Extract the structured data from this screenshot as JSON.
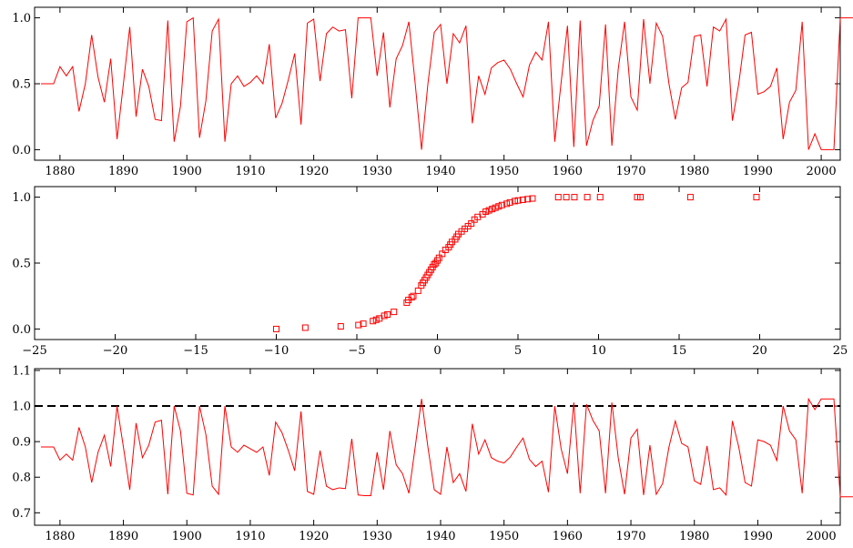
{
  "chart_data": [
    {
      "type": "line",
      "color": "#ff0000",
      "xlim": [
        1876,
        2003
      ],
      "ylim": [
        -0.08,
        1.08
      ],
      "x_ticks": [
        1880,
        1890,
        1900,
        1910,
        1920,
        1930,
        1940,
        1950,
        1960,
        1970,
        1980,
        1990,
        2000
      ],
      "y_ticks": [
        0.0,
        0.5,
        1.0
      ],
      "x_tick_labels": [
        "1880",
        "1890",
        "1900",
        "1910",
        "1920",
        "1930",
        "1940",
        "1950",
        "1960",
        "1970",
        "1980",
        "1990",
        "2000"
      ],
      "y_tick_labels": [
        "0.0",
        "0.5",
        "1.0"
      ],
      "x_start": 1877,
      "x_step": 1,
      "values": [
        0.5,
        0.5,
        0.5,
        0.63,
        0.56,
        0.63,
        0.29,
        0.5,
        0.87,
        0.55,
        0.36,
        0.69,
        0.08,
        0.5,
        0.93,
        0.25,
        0.61,
        0.48,
        0.23,
        0.22,
        0.98,
        0.06,
        0.33,
        0.97,
        1.0,
        0.09,
        0.37,
        0.9,
        0.99,
        0.06,
        0.5,
        0.56,
        0.48,
        0.51,
        0.56,
        0.5,
        0.8,
        0.24,
        0.35,
        0.53,
        0.73,
        0.19,
        0.96,
        0.99,
        0.52,
        0.88,
        0.93,
        0.9,
        0.91,
        0.39,
        1.0,
        1.0,
        1.0,
        0.56,
        0.89,
        0.32,
        0.69,
        0.79,
        0.97,
        0.5,
        0.0,
        0.5,
        0.89,
        0.95,
        0.5,
        0.88,
        0.81,
        0.94,
        0.2,
        0.56,
        0.42,
        0.62,
        0.66,
        0.68,
        0.61,
        0.5,
        0.4,
        0.64,
        0.74,
        0.68,
        0.97,
        0.06,
        0.51,
        0.94,
        0.02,
        0.98,
        0.03,
        0.22,
        0.33,
        0.95,
        0.03,
        0.61,
        0.97,
        0.4,
        0.3,
        0.99,
        0.5,
        0.96,
        0.86,
        0.5,
        0.23,
        0.47,
        0.51,
        0.86,
        0.87,
        0.48,
        0.93,
        0.9,
        0.99,
        0.22,
        0.5,
        0.87,
        0.89,
        0.42,
        0.44,
        0.48,
        0.62,
        0.08,
        0.36,
        0.45,
        0.97,
        0.0,
        0.12,
        0.0,
        0.0,
        0.0,
        1.0,
        1.0,
        1.0
      ]
    },
    {
      "type": "scatter",
      "marker": "square",
      "color": "#ff0000",
      "xlim": [
        -25,
        25
      ],
      "ylim": [
        -0.08,
        1.08
      ],
      "x_ticks": [
        -25,
        -20,
        -15,
        -10,
        -5,
        0,
        5,
        10,
        15,
        20,
        25
      ],
      "y_ticks": [
        0.0,
        0.5,
        1.0
      ],
      "x_tick_labels": [
        "−25",
        "−20",
        "−15",
        "−10",
        "−5",
        "0",
        "5",
        "10",
        "15",
        "20",
        "25"
      ],
      "y_tick_labels": [
        "0.0",
        "0.5",
        "1.0"
      ],
      "points": [
        [
          -10.0,
          0.0
        ],
        [
          -8.2,
          0.01
        ],
        [
          -6.0,
          0.02
        ],
        [
          -4.9,
          0.03
        ],
        [
          -4.6,
          0.04
        ],
        [
          -4.0,
          0.06
        ],
        [
          -3.8,
          0.07
        ],
        [
          -3.6,
          0.08
        ],
        [
          -3.3,
          0.1
        ],
        [
          -3.1,
          0.11
        ],
        [
          -2.7,
          0.13
        ],
        [
          -1.9,
          0.2
        ],
        [
          -1.8,
          0.22
        ],
        [
          -1.6,
          0.24
        ],
        [
          -1.5,
          0.25
        ],
        [
          -1.2,
          0.29
        ],
        [
          -1.0,
          0.33
        ],
        [
          -0.9,
          0.35
        ],
        [
          -0.8,
          0.37
        ],
        [
          -0.7,
          0.39
        ],
        [
          -0.6,
          0.41
        ],
        [
          -0.5,
          0.43
        ],
        [
          -0.4,
          0.45
        ],
        [
          -0.3,
          0.47
        ],
        [
          -0.2,
          0.49
        ],
        [
          -0.1,
          0.5
        ],
        [
          0.0,
          0.52
        ],
        [
          0.1,
          0.54
        ],
        [
          0.3,
          0.57
        ],
        [
          0.5,
          0.6
        ],
        [
          0.7,
          0.62
        ],
        [
          0.8,
          0.64
        ],
        [
          0.9,
          0.66
        ],
        [
          1.1,
          0.68
        ],
        [
          1.2,
          0.7
        ],
        [
          1.3,
          0.72
        ],
        [
          1.5,
          0.74
        ],
        [
          1.7,
          0.76
        ],
        [
          1.9,
          0.78
        ],
        [
          2.1,
          0.8
        ],
        [
          2.3,
          0.83
        ],
        [
          2.5,
          0.85
        ],
        [
          2.8,
          0.87
        ],
        [
          3.0,
          0.89
        ],
        [
          3.2,
          0.9
        ],
        [
          3.4,
          0.91
        ],
        [
          3.6,
          0.92
        ],
        [
          3.8,
          0.93
        ],
        [
          4.0,
          0.94
        ],
        [
          4.3,
          0.95
        ],
        [
          4.5,
          0.96
        ],
        [
          4.8,
          0.97
        ],
        [
          5.0,
          0.975
        ],
        [
          5.3,
          0.98
        ],
        [
          5.6,
          0.985
        ],
        [
          5.9,
          0.99
        ],
        [
          7.5,
          1.0
        ],
        [
          8.0,
          1.0
        ],
        [
          8.5,
          1.0
        ],
        [
          9.3,
          1.0
        ],
        [
          10.1,
          1.0
        ],
        [
          12.4,
          1.0
        ],
        [
          12.6,
          1.0
        ],
        [
          15.7,
          1.0
        ],
        [
          19.8,
          1.0
        ]
      ]
    },
    {
      "type": "line",
      "color": "#ff0000",
      "xlim": [
        1876,
        2003
      ],
      "ylim": [
        0.665,
        1.105
      ],
      "x_ticks": [
        1880,
        1890,
        1900,
        1910,
        1920,
        1930,
        1940,
        1950,
        1960,
        1970,
        1980,
        1990,
        2000
      ],
      "y_ticks": [
        0.7,
        0.8,
        0.9,
        1.0,
        1.1
      ],
      "x_tick_labels": [
        "1880",
        "1890",
        "1900",
        "1910",
        "1920",
        "1930",
        "1940",
        "1950",
        "1960",
        "1970",
        "1980",
        "1990",
        "2000"
      ],
      "y_tick_labels": [
        "0.7",
        "0.8",
        "0.9",
        "1.0",
        "1.1"
      ],
      "reference_line": {
        "y": 1.0,
        "style": "dashed",
        "color": "#000000"
      },
      "x_start": 1877,
      "x_step": 1,
      "values": [
        0.885,
        0.885,
        0.885,
        0.848,
        0.865,
        0.848,
        0.94,
        0.885,
        0.785,
        0.87,
        0.918,
        0.83,
        1.0,
        0.885,
        0.765,
        0.952,
        0.855,
        0.89,
        0.955,
        0.96,
        0.752,
        1.0,
        0.93,
        0.755,
        0.75,
        1.0,
        0.92,
        0.775,
        0.752,
        1.0,
        0.885,
        0.87,
        0.89,
        0.88,
        0.87,
        0.885,
        0.805,
        0.955,
        0.925,
        0.875,
        0.818,
        0.985,
        0.76,
        0.752,
        0.875,
        0.775,
        0.765,
        0.77,
        0.768,
        0.908,
        0.75,
        0.748,
        0.748,
        0.87,
        0.765,
        0.93,
        0.835,
        0.81,
        0.755,
        0.885,
        1.02,
        0.885,
        0.765,
        0.752,
        0.885,
        0.785,
        0.81,
        0.76,
        0.95,
        0.865,
        0.905,
        0.855,
        0.845,
        0.84,
        0.857,
        0.885,
        0.91,
        0.85,
        0.83,
        0.845,
        0.758,
        1.0,
        0.88,
        0.81,
        1.01,
        0.755,
        1.005,
        0.96,
        0.93,
        0.755,
        1.01,
        0.855,
        0.752,
        0.91,
        0.935,
        0.75,
        0.89,
        0.752,
        0.782,
        0.885,
        0.958,
        0.895,
        0.885,
        0.79,
        0.78,
        0.888,
        0.765,
        0.77,
        0.75,
        0.958,
        0.885,
        0.785,
        0.775,
        0.905,
        0.9,
        0.89,
        0.847,
        1.0,
        0.93,
        0.905,
        0.755,
        1.02,
        0.99,
        1.02,
        1.02,
        1.02,
        0.745,
        0.745,
        0.745
      ]
    }
  ]
}
